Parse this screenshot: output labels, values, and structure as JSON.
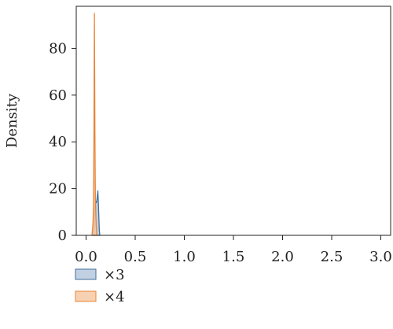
{
  "chart_data": {
    "type": "area",
    "xlabel": "",
    "ylabel": "Density",
    "xlim": [
      -0.1,
      3.1
    ],
    "ylim": [
      0,
      98
    ],
    "x_ticks": [
      0.0,
      0.5,
      1.0,
      1.5,
      2.0,
      2.5,
      3.0
    ],
    "x_tick_labels": [
      "0.0",
      "0.5",
      "1.0",
      "1.5",
      "2.0",
      "2.5",
      "3.0"
    ],
    "y_ticks": [
      0,
      20,
      40,
      60,
      80
    ],
    "y_tick_labels": [
      "0",
      "20",
      "40",
      "60",
      "80"
    ],
    "grid": false,
    "legend_position": "bottom-left",
    "series": [
      {
        "name": "×3",
        "color": "#3f6f9f",
        "fill": "#b7c9dd",
        "x": [
          0.07,
          0.08,
          0.085,
          0.09,
          0.095,
          0.1,
          0.105,
          0.11,
          0.115,
          0.12,
          0.125,
          0.13,
          0.135,
          0.14
        ],
        "y": [
          0,
          2,
          8,
          13,
          13.5,
          14.5,
          14,
          15,
          17,
          19,
          14,
          8,
          2,
          0
        ]
      },
      {
        "name": "×4",
        "color": "#e8853a",
        "fill": "#f6c9a3",
        "x": [
          0.06,
          0.07,
          0.075,
          0.08,
          0.083,
          0.085,
          0.087,
          0.09,
          0.093,
          0.095,
          0.1,
          0.105,
          0.11
        ],
        "y": [
          0,
          5,
          12,
          40,
          75,
          95,
          75,
          45,
          25,
          15,
          8,
          3,
          0
        ]
      }
    ]
  }
}
